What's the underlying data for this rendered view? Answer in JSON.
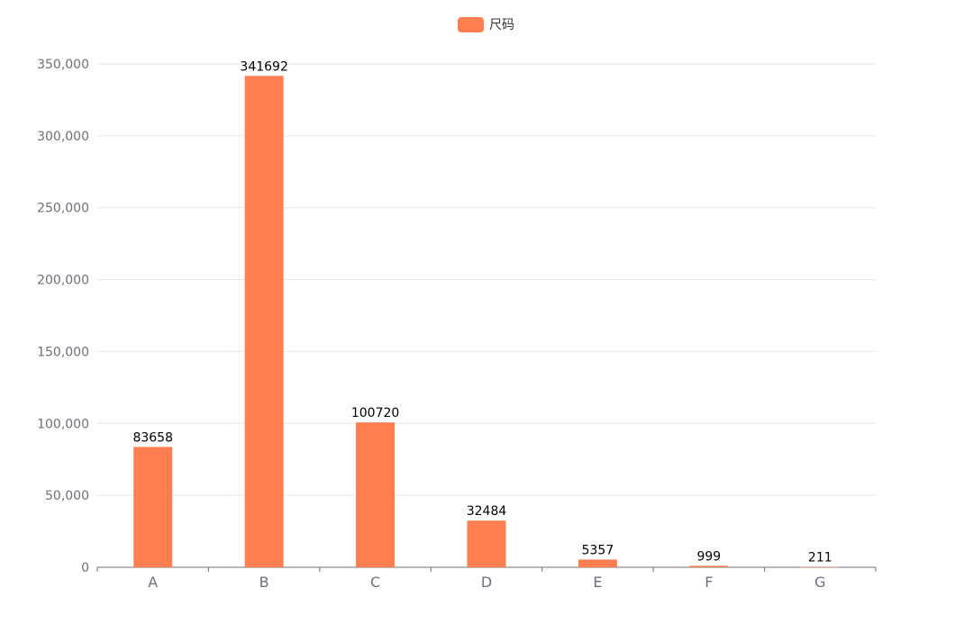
{
  "chart_data": {
    "type": "bar",
    "categories": [
      "A",
      "B",
      "C",
      "D",
      "E",
      "F",
      "G"
    ],
    "series": [
      {
        "name": "尺码",
        "values": [
          83658,
          341692,
          100720,
          32484,
          5357,
          999,
          211
        ]
      }
    ],
    "ylim": [
      0,
      350000
    ],
    "yticks": [
      "0",
      "50,000",
      "100,000",
      "150,000",
      "200,000",
      "250,000",
      "300,000",
      "350,000"
    ],
    "data_labels": [
      "83658",
      "341692",
      "100720",
      "32484",
      "5357",
      "999",
      "211"
    ],
    "grid": true,
    "legend_position": "top-center"
  },
  "colors": {
    "bar": "#ff7f50",
    "grid": "#e6e6e6",
    "axis": "#6e7079",
    "tick_label": "#6e7079",
    "data_label": "#000000"
  }
}
